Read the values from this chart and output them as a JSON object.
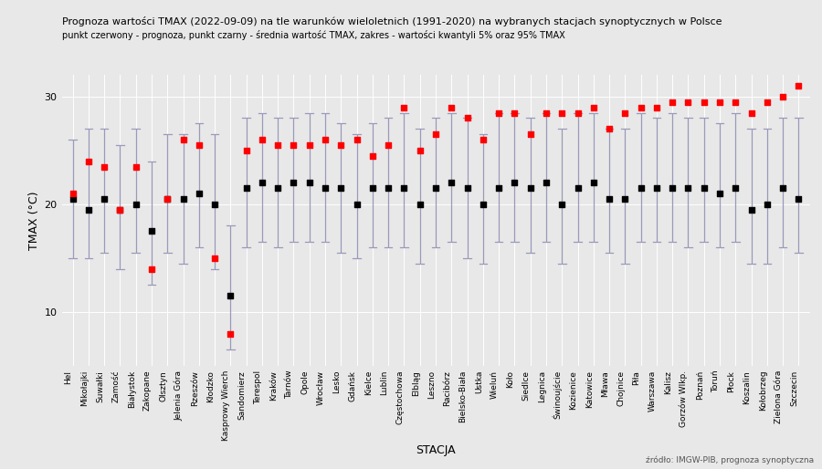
{
  "title": "Prognoza wartości TMAX (2022-09-09) na tle warunków wieloletnich (1991-2020) na wybranych stacjach synoptycznych w Polsce",
  "subtitle": "punkt czerwony - prognoza, punkt czarny - średnia wartość TMAX, zakres - wartości kwantyli 5% oraz 95% TMAX",
  "xlabel": "STACJA",
  "ylabel": "TMAX (°C)",
  "source": "źródło: IMGW-PIB, prognoza synoptyczna",
  "ylim": [
    5,
    32
  ],
  "yticks": [
    10,
    20,
    30
  ],
  "stations": [
    "Hel",
    "Mikołajki",
    "Suwałki",
    "Zamość",
    "Białystok",
    "Zakopane",
    "Olsztyn",
    "Jelenia Góra",
    "Rzeszów",
    "Kłodzko",
    "Kasprowy Wierch",
    "Sandomierz",
    "Terespol",
    "Kraków",
    "Tarnów",
    "Opole",
    "Wrocław",
    "Lesko",
    "Gdańsk",
    "Kielce",
    "Lublin",
    "Częstochowa",
    "Elbląg",
    "Leszno",
    "Racibórz",
    "Bielsko-Biała",
    "Ustka",
    "Wieluń",
    "Koło",
    "Siedlce",
    "Legnica",
    "Świnoujście",
    "Kozienice",
    "Katowice",
    "Mława",
    "Chojnice",
    "Piła",
    "Warszawa",
    "Kalisz",
    "Gorzów Wlkp.",
    "Poznań",
    "Toruń",
    "Płock",
    "Koszalin",
    "Kołobrzeg",
    "Zielona Góra",
    "Szczecin"
  ],
  "forecast": [
    21.0,
    24.0,
    23.5,
    19.5,
    23.5,
    14.0,
    20.5,
    26.0,
    25.5,
    15.0,
    8.0,
    25.0,
    26.0,
    25.5,
    25.5,
    25.5,
    26.0,
    25.5,
    26.0,
    24.5,
    25.5,
    29.0,
    25.0,
    26.5,
    29.0,
    28.0,
    26.0,
    28.5,
    28.5,
    26.5,
    28.5,
    28.5,
    28.5,
    29.0,
    27.0,
    28.5,
    29.0,
    29.0,
    29.5,
    29.5,
    29.5,
    29.5,
    29.5,
    28.5,
    29.5,
    30.0,
    31.0
  ],
  "mean": [
    20.5,
    19.5,
    20.5,
    19.5,
    20.0,
    17.5,
    20.5,
    20.5,
    21.0,
    20.0,
    11.5,
    21.5,
    22.0,
    21.5,
    22.0,
    22.0,
    21.5,
    21.5,
    20.0,
    21.5,
    21.5,
    21.5,
    20.0,
    21.5,
    22.0,
    21.5,
    20.0,
    21.5,
    22.0,
    21.5,
    22.0,
    20.0,
    21.5,
    22.0,
    20.5,
    20.5,
    21.5,
    21.5,
    21.5,
    21.5,
    21.5,
    21.0,
    21.5,
    19.5,
    20.0,
    21.5,
    20.5
  ],
  "q05": [
    15.0,
    15.0,
    15.5,
    14.0,
    15.5,
    12.5,
    15.5,
    14.5,
    16.0,
    14.0,
    6.5,
    16.0,
    16.5,
    16.0,
    16.5,
    16.5,
    16.5,
    15.5,
    15.0,
    16.0,
    16.0,
    16.0,
    14.5,
    16.0,
    16.5,
    15.0,
    14.5,
    16.5,
    16.5,
    15.5,
    16.5,
    14.5,
    16.5,
    16.5,
    15.5,
    14.5,
    16.5,
    16.5,
    16.5,
    16.0,
    16.5,
    16.0,
    16.5,
    14.5,
    14.5,
    16.0,
    15.5
  ],
  "q95": [
    26.0,
    27.0,
    27.0,
    25.5,
    27.0,
    24.0,
    26.5,
    26.5,
    27.5,
    26.5,
    18.0,
    28.0,
    28.5,
    28.0,
    28.0,
    28.5,
    28.5,
    27.5,
    26.5,
    27.5,
    28.0,
    28.5,
    27.0,
    28.0,
    28.5,
    28.0,
    26.5,
    28.5,
    28.5,
    28.0,
    28.5,
    27.0,
    28.5,
    28.5,
    27.0,
    27.0,
    28.5,
    28.0,
    28.5,
    28.0,
    28.0,
    27.5,
    28.5,
    27.0,
    27.0,
    28.0,
    28.0
  ],
  "bar_color": "#9999bb",
  "forecast_color": "red",
  "mean_color": "black",
  "bg_color": "#e8e8e8",
  "plot_bg_color": "#e8e8e8",
  "grid_color": "white"
}
